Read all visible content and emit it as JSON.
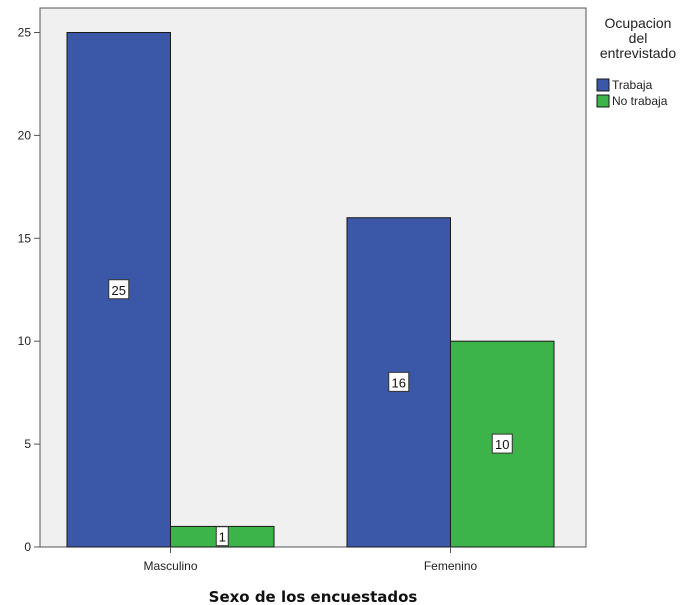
{
  "chart_data": {
    "type": "bar",
    "categories": [
      "Masculino",
      "Femenino"
    ],
    "series": [
      {
        "name": "Trabaja",
        "values": [
          25,
          16
        ]
      },
      {
        "name": "No trabaja",
        "values": [
          1,
          10
        ]
      }
    ],
    "xlabel": "Sexo de los encuestados",
    "ylabel": "",
    "ylim": [
      0,
      26
    ],
    "yticks": [
      0,
      5,
      10,
      15,
      20,
      25
    ],
    "legend": {
      "title_lines": [
        "Ocupacion",
        "del",
        "entrevistado"
      ],
      "placement": "right"
    },
    "data_labels": true,
    "grid": false
  },
  "colors": {
    "plot_background": "#f0f0f0",
    "series": [
      "#3b57a8",
      "#3cb44a"
    ],
    "bar_outline": "#1a1a1a"
  }
}
